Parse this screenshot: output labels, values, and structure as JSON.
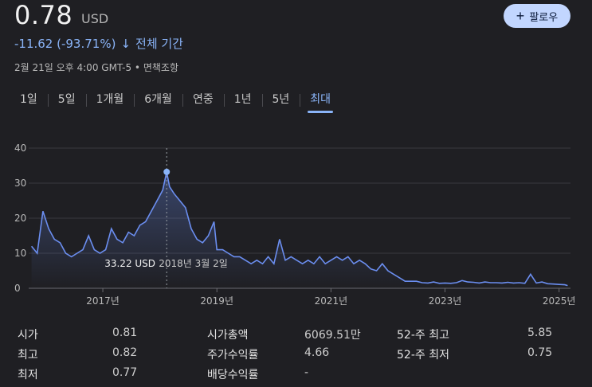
{
  "quote": {
    "price": "0.78",
    "currency": "USD",
    "change": "-11.62 (-93.71%)",
    "change_period": "전체 기간",
    "timestamp": "2월 21일 오후 4:00 GMT-5 • 면책조항",
    "follow_label": "팔로우"
  },
  "tabs": [
    {
      "label": "1일",
      "active": false
    },
    {
      "label": "5일",
      "active": false
    },
    {
      "label": "1개월",
      "active": false
    },
    {
      "label": "6개월",
      "active": false
    },
    {
      "label": "연중",
      "active": false
    },
    {
      "label": "1년",
      "active": false
    },
    {
      "label": "5년",
      "active": false
    },
    {
      "label": "최대",
      "active": true
    }
  ],
  "colors": {
    "accent": "#8ab4f8",
    "line": "#6b8ef0",
    "negative": "#8ab4f8"
  },
  "chart_data": {
    "type": "line",
    "ylim": [
      0,
      40
    ],
    "yticks": [
      0,
      10,
      20,
      30,
      40
    ],
    "xticks": [
      "2017년",
      "2019년",
      "2021년",
      "2023년",
      "2025년"
    ],
    "grid": true,
    "tooltip": {
      "value": "33.22 USD",
      "date": "2018년 3월 2일"
    },
    "x": [
      2015.75,
      2015.85,
      2015.95,
      2016.05,
      2016.15,
      2016.25,
      2016.35,
      2016.45,
      2016.55,
      2016.65,
      2016.75,
      2016.85,
      2016.95,
      2017.05,
      2017.15,
      2017.25,
      2017.35,
      2017.45,
      2017.55,
      2017.65,
      2017.75,
      2017.85,
      2017.95,
      2018.05,
      2018.12,
      2018.17,
      2018.25,
      2018.35,
      2018.45,
      2018.55,
      2018.65,
      2018.75,
      2018.85,
      2018.95,
      2019.0,
      2019.1,
      2019.2,
      2019.3,
      2019.4,
      2019.5,
      2019.6,
      2019.7,
      2019.8,
      2019.9,
      2020.0,
      2020.1,
      2020.2,
      2020.3,
      2020.4,
      2020.5,
      2020.6,
      2020.7,
      2020.8,
      2020.9,
      2021.0,
      2021.1,
      2021.2,
      2021.3,
      2021.4,
      2021.5,
      2021.6,
      2021.7,
      2021.8,
      2021.9,
      2022.0,
      2022.1,
      2022.2,
      2022.3,
      2022.4,
      2022.5,
      2022.6,
      2022.7,
      2022.8,
      2022.9,
      2023.0,
      2023.1,
      2023.2,
      2023.3,
      2023.4,
      2023.5,
      2023.6,
      2023.7,
      2023.8,
      2023.9,
      2024.0,
      2024.1,
      2024.2,
      2024.3,
      2024.4,
      2024.5,
      2024.6,
      2024.7,
      2024.8,
      2024.9,
      2025.0,
      2025.1,
      2025.15
    ],
    "y": [
      12,
      10,
      22,
      17,
      14,
      13,
      10,
      9,
      10,
      11,
      15,
      11,
      10,
      11,
      17,
      14,
      13,
      16,
      15,
      18,
      19,
      22,
      25,
      28,
      33.22,
      29,
      27,
      25,
      23,
      17,
      14,
      13,
      15,
      19,
      11,
      11,
      10,
      9,
      9,
      8,
      7,
      8,
      7,
      9,
      7,
      14,
      8,
      9,
      8,
      7,
      8,
      7,
      9,
      7,
      8,
      9,
      8,
      9,
      7,
      8,
      7,
      5.5,
      5,
      7,
      5,
      4,
      3,
      2,
      2,
      2,
      1.6,
      1.5,
      1.8,
      1.4,
      1.5,
      1.4,
      1.6,
      2.2,
      1.8,
      1.7,
      1.5,
      1.8,
      1.6,
      1.6,
      1.5,
      1.7,
      1.5,
      1.6,
      1.4,
      4,
      1.5,
      1.8,
      1.3,
      1.2,
      1.1,
      1.0,
      0.78
    ]
  },
  "stats": [
    {
      "label": "시가",
      "value": "0.81"
    },
    {
      "label": "최고",
      "value": "0.82"
    },
    {
      "label": "최저",
      "value": "0.77"
    },
    {
      "label": "시가총액",
      "value": "6069.51만"
    },
    {
      "label": "주가수익률",
      "value": "4.66"
    },
    {
      "label": "배당수익률",
      "value": "-"
    },
    {
      "label": "52-주 최고",
      "value": "5.85"
    },
    {
      "label": "52-주 최저",
      "value": "0.75"
    }
  ]
}
